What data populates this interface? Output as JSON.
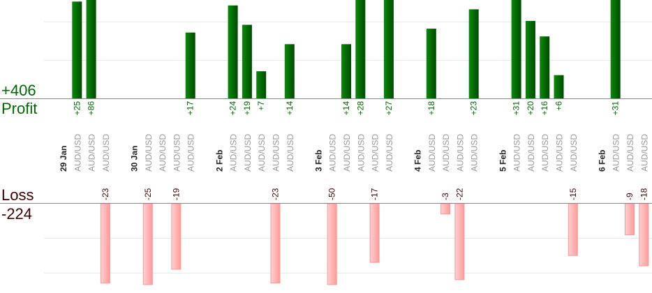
{
  "chart_data": {
    "type": "bar",
    "profit_label": "Profit",
    "profit_total": "+406",
    "loss_label": "Loss",
    "loss_total": "-224",
    "colors": {
      "profit": "#006600",
      "loss": "#ffa0a0",
      "profit_text": "#006600",
      "loss_text": "#400000"
    },
    "groups": [
      {
        "date": "29 Jan",
        "trades": [
          {
            "symbol": "AUD/USD",
            "value": 25,
            "label": "+25"
          },
          {
            "symbol": "AUD/USD",
            "value": 86,
            "label": "+86"
          },
          {
            "symbol": "AUD/USD",
            "value": -23,
            "label": "-23"
          }
        ]
      },
      {
        "date": "30 Jan",
        "trades": [
          {
            "symbol": "AUD/USD",
            "value": -25,
            "label": "-25"
          },
          {
            "symbol": "AUD/USD",
            "value": 0,
            "label": ""
          },
          {
            "symbol": "AUD/USD",
            "value": -19,
            "label": "-19"
          },
          {
            "symbol": "AUD/USD",
            "value": 17,
            "label": "+17"
          }
        ]
      },
      {
        "date": "2 Feb",
        "trades": [
          {
            "symbol": "AUD/USD",
            "value": 24,
            "label": "+24"
          },
          {
            "symbol": "AUD/USD",
            "value": 19,
            "label": "+19"
          },
          {
            "symbol": "AUD/USD",
            "value": 7,
            "label": "+7"
          },
          {
            "symbol": "AUD/USD",
            "value": -23,
            "label": "-23"
          },
          {
            "symbol": "AUD/USD",
            "value": 14,
            "label": "+14"
          }
        ]
      },
      {
        "date": "3 Feb",
        "trades": [
          {
            "symbol": "AUD/USD",
            "value": -50,
            "label": "-50"
          },
          {
            "symbol": "AUD/USD",
            "value": 14,
            "label": "+14"
          },
          {
            "symbol": "AUD/USD",
            "value": 28,
            "label": "+28"
          },
          {
            "symbol": "AUD/USD",
            "value": -17,
            "label": "-17"
          },
          {
            "symbol": "AUD/USD",
            "value": 27,
            "label": "+27"
          }
        ]
      },
      {
        "date": "4 Feb",
        "trades": [
          {
            "symbol": "AUD/USD",
            "value": 18,
            "label": "+18"
          },
          {
            "symbol": "AUD/USD",
            "value": -3,
            "label": "-3"
          },
          {
            "symbol": "AUD/USD",
            "value": -22,
            "label": "-22"
          },
          {
            "symbol": "AUD/USD",
            "value": 23,
            "label": "+23"
          }
        ]
      },
      {
        "date": "5 Feb",
        "trades": [
          {
            "symbol": "AUD/USD",
            "value": 31,
            "label": "+31"
          },
          {
            "symbol": "AUD/USD",
            "value": 20,
            "label": "+20"
          },
          {
            "symbol": "AUD/USD",
            "value": 16,
            "label": "+16"
          },
          {
            "symbol": "AUD/USD",
            "value": 6,
            "label": "+6"
          },
          {
            "symbol": "AUD/USD",
            "value": -15,
            "label": "-15"
          }
        ]
      },
      {
        "date": "6 Feb",
        "trades": [
          {
            "symbol": "AUD/USD",
            "value": 31,
            "label": "+31"
          },
          {
            "symbol": "AUD/USD",
            "value": -9,
            "label": "-9"
          },
          {
            "symbol": "AUD/USD",
            "value": -18,
            "label": "-18"
          }
        ]
      }
    ]
  }
}
